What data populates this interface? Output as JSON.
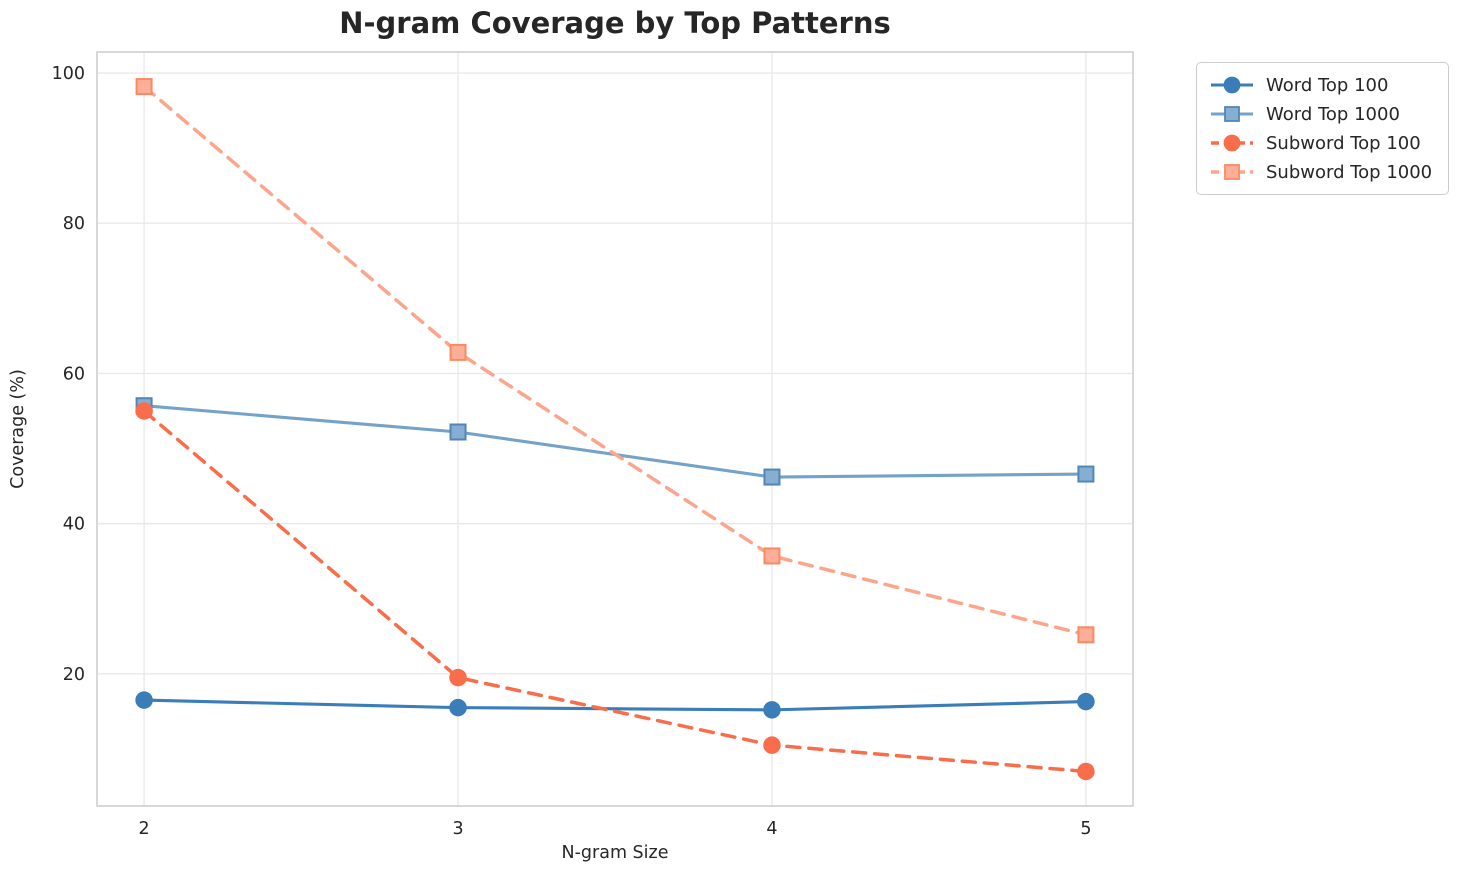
{
  "figure": {
    "background_color": "#ffffff"
  },
  "chart_data": {
    "type": "line",
    "title": "N-gram Coverage by Top Patterns",
    "xlabel": "N-gram Size",
    "ylabel": "Coverage (%)",
    "x": [
      2,
      3,
      4,
      5
    ],
    "series": [
      {
        "name": "Word Top 100",
        "values": [
          16.5,
          15.5,
          15.2,
          16.3
        ],
        "color": "#3a7db8",
        "marker_fill": "#3a7db8",
        "marker_edge": "#3a7db8",
        "line_style": "solid",
        "marker": "circle"
      },
      {
        "name": "Word Top 1000",
        "values": [
          55.7,
          52.2,
          46.2,
          46.6
        ],
        "color": "#74a3c9",
        "marker_fill": "#85aed2",
        "marker_edge": "#5286b6",
        "line_style": "solid",
        "marker": "square"
      },
      {
        "name": "Subword Top 100",
        "values": [
          55.0,
          19.5,
          10.5,
          7.0
        ],
        "color": "#f96d4a",
        "marker_fill": "#f96d4a",
        "marker_edge": "#f96d4a",
        "line_style": "dashed",
        "marker": "circle"
      },
      {
        "name": "Subword Top 1000",
        "values": [
          98.2,
          62.8,
          35.7,
          25.2
        ],
        "color": "#fba58c",
        "marker_fill": "#fcae96",
        "marker_edge": "#f98a64",
        "line_style": "dashed",
        "marker": "square"
      }
    ],
    "xticks": [
      "2",
      "3",
      "4",
      "5"
    ],
    "xtick_values": [
      2,
      3,
      4,
      5
    ],
    "yticks": [
      "20",
      "40",
      "60",
      "80",
      "100"
    ],
    "ytick_values": [
      20,
      40,
      60,
      80,
      100
    ],
    "xlim": [
      1.85,
      5.15
    ],
    "ylim": [
      2.4,
      102.8
    ],
    "grid": true,
    "legend_position": "outside-top-right"
  },
  "style": {
    "grid_color": "#e9e9e9",
    "spine_color": "#cfcfcf",
    "text_color": "#262626",
    "tick_font_size": 17.5
  }
}
